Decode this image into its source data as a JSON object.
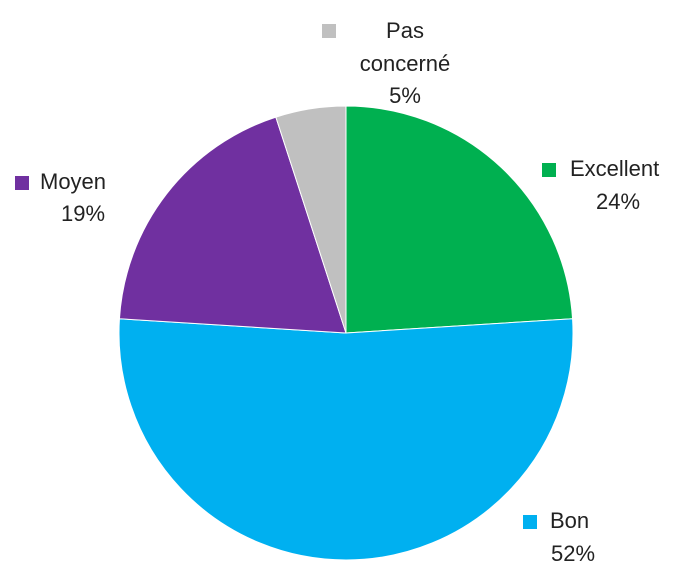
{
  "chart_data": {
    "type": "pie",
    "categories": [
      "Excellent",
      "Bon",
      "Moyen",
      "Pas concerné"
    ],
    "values": [
      24,
      52,
      19,
      5
    ],
    "value_labels": [
      "24%",
      "52%",
      "19%",
      "5%"
    ],
    "colors": [
      "#00b050",
      "#00b0f0",
      "#7030a0",
      "#c0c0c0"
    ]
  }
}
